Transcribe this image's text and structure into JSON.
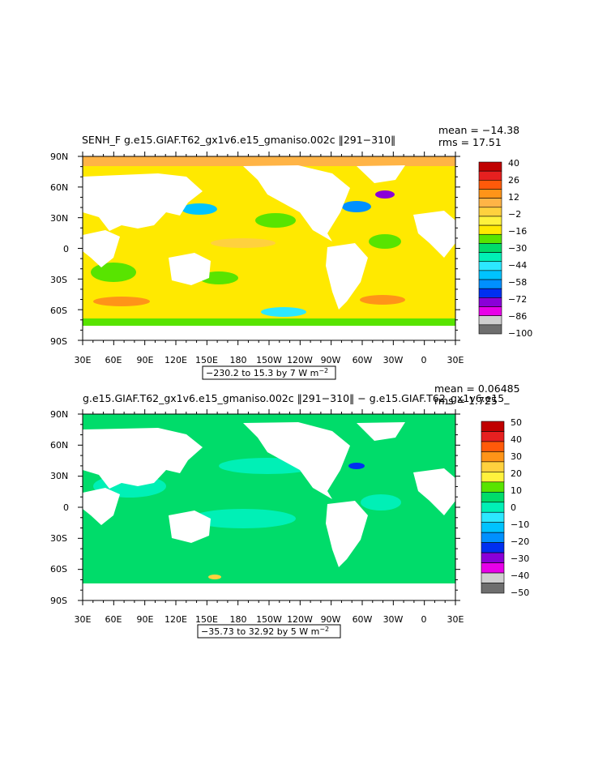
{
  "colors": {
    "land": "#ffffff",
    "axis": "#000000"
  },
  "panels": [
    {
      "id": "top",
      "title_left": "SENH_F  g.e15.GIAF.T62_gx1v6.e15_gmaniso.002c  ‖291−310‖",
      "mean_text": "mean = −14.38",
      "rms_text": "rms = 17.51",
      "range_text": "−230.2 to 15.3 by 7  W m",
      "range_sup": "−2",
      "lat_labels": [
        "90N",
        "60N",
        "30N",
        "0",
        "30S",
        "60S",
        "90S"
      ],
      "lon_labels": [
        "30E",
        "60E",
        "90E",
        "120E",
        "150E",
        "180",
        "150W",
        "120W",
        "90W",
        "60W",
        "30W",
        "0",
        "30E"
      ],
      "colorbar": {
        "labels": [
          "40",
          "26",
          "12",
          "−2",
          "−16",
          "−30",
          "−44",
          "−58",
          "−72",
          "−86",
          "−100"
        ],
        "colors": [
          "#c00000",
          "#e62020",
          "#ff5a0a",
          "#ff9418",
          "#ffb446",
          "#ffd13e",
          "#fff23d",
          "#ffe900",
          "#58e400",
          "#00dc6a",
          "#00f0b6",
          "#2ce8ff",
          "#00c3ff",
          "#0090ff",
          "#0030f0",
          "#8a00d8",
          "#e800e8",
          "#cfcfcf",
          "#6e6e6e"
        ]
      },
      "ocean_base": "#ffe900"
    },
    {
      "id": "bottom",
      "title_left": "g.e15.GIAF.T62_gx1v6.e15_gmaniso.002c  ‖291−310‖  −  g.e15.GIAF.T62_gx1v6.e15_",
      "mean_text": "mean = 0.06485",
      "rms_text": "rms = 1.725",
      "range_text": "−35.73 to 32.92 by 5  W m",
      "range_sup": "−2",
      "lat_labels": [
        "90N",
        "60N",
        "30N",
        "0",
        "30S",
        "60S",
        "90S"
      ],
      "lon_labels": [
        "30E",
        "60E",
        "90E",
        "120E",
        "150E",
        "180",
        "150W",
        "120W",
        "90W",
        "60W",
        "30W",
        "0",
        "30E"
      ],
      "colorbar": {
        "labels": [
          "50",
          "40",
          "30",
          "20",
          "10",
          "0",
          "−10",
          "−20",
          "−30",
          "−40",
          "−50"
        ],
        "colors": [
          "#c00000",
          "#e62020",
          "#ff5a0a",
          "#ff9418",
          "#ffd13e",
          "#fff23d",
          "#58e400",
          "#00dc6a",
          "#00f0b6",
          "#2ce8ff",
          "#00c3ff",
          "#0090ff",
          "#0030f0",
          "#8a00d8",
          "#e800e8",
          "#cfcfcf",
          "#6e6e6e"
        ]
      },
      "ocean_base": "#00dc6a"
    }
  ]
}
